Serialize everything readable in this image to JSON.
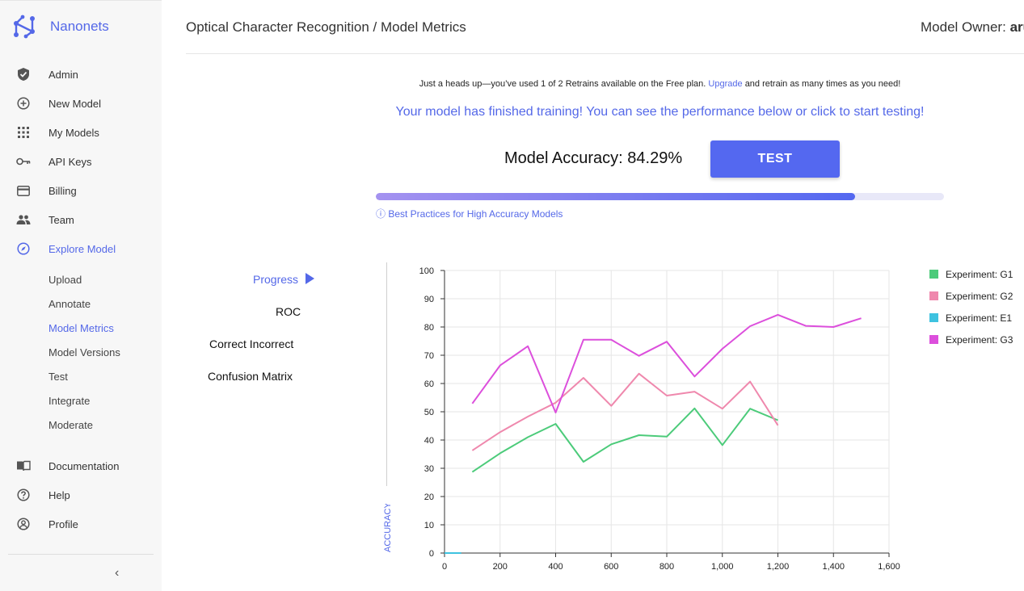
{
  "sidebar": {
    "brand": "Nanonets",
    "nav": [
      {
        "label": "Admin",
        "icon": "shield-icon"
      },
      {
        "label": "New Model",
        "icon": "plus-circle-icon"
      },
      {
        "label": "My Models",
        "icon": "grid-icon"
      },
      {
        "label": "API Keys",
        "icon": "key-icon"
      },
      {
        "label": "Billing",
        "icon": "credit-card-icon"
      },
      {
        "label": "Team",
        "icon": "people-icon"
      },
      {
        "label": "Explore Model",
        "icon": "compass-icon"
      }
    ],
    "sub_items": [
      "Upload",
      "Annotate",
      "Model Metrics",
      "Model Versions",
      "Test",
      "Integrate",
      "Moderate"
    ],
    "active_sub": "Model Metrics",
    "bottom": [
      {
        "label": "Documentation",
        "icon": "book-icon"
      },
      {
        "label": "Help",
        "icon": "help-icon"
      },
      {
        "label": "Profile",
        "icon": "profile-icon"
      }
    ],
    "collapse_glyph": "‹"
  },
  "header": {
    "breadcrumb": "Optical Character Recognition / Model Metrics",
    "owner_label": "Model Owner:",
    "owner_name": "aru"
  },
  "notice": {
    "text_before": "Just a heads up—you’ve used 1 of 2 Retrains available on the Free plan.",
    "link": "Upgrade",
    "text_after": "and retrain as many times as you need!"
  },
  "training_message": "Your model has finished training! You can see the performance below or click to start testing!",
  "accuracy_text": "Model Accuracy: 84.29%",
  "accuracy_value": 84.29,
  "test_button": "TEST",
  "best_practices": "ⓘ Best Practices for High Accuracy Models",
  "metric_tabs": [
    "Progress",
    "ROC",
    "Correct Incorrect",
    "Confusion Matrix"
  ],
  "active_tab": "Progress",
  "colors": {
    "accent": "#5468e8",
    "G1": "#4ccb7a",
    "G2": "#ef88ad",
    "E1": "#3ec2e0",
    "G3": "#dc4fdc"
  },
  "chart_data": {
    "type": "line",
    "ylabel": "ACCURACY",
    "xlabel": "",
    "xlim": [
      0,
      1600
    ],
    "ylim": [
      0,
      100
    ],
    "x_ticks": [
      0,
      200,
      400,
      600,
      800,
      1000,
      1200,
      1400,
      1600
    ],
    "x_tick_labels": [
      "0",
      "200",
      "400",
      "600",
      "800",
      "1,000",
      "1,200",
      "1,400",
      "1,600"
    ],
    "y_ticks": [
      0,
      10,
      20,
      30,
      40,
      50,
      60,
      70,
      80,
      90,
      100
    ],
    "grid": true,
    "legend_position": "right",
    "series": [
      {
        "name": "Experiment: G1",
        "color": "#4ccb7a",
        "x": [
          100,
          200,
          300,
          400,
          500,
          600,
          700,
          800,
          900,
          1000,
          1100,
          1200
        ],
        "y": [
          28.7,
          35.3,
          41,
          45.7,
          32.3,
          38.5,
          41.7,
          41.2,
          51.2,
          38.2,
          51.1,
          47
        ]
      },
      {
        "name": "Experiment: G2",
        "color": "#ef88ad",
        "x": [
          100,
          200,
          300,
          400,
          500,
          600,
          700,
          800,
          900,
          1000,
          1100,
          1200
        ],
        "y": [
          36.3,
          42.8,
          48.3,
          53.2,
          62,
          52.1,
          63.5,
          55.7,
          57.1,
          51.1,
          60.7,
          45.2
        ]
      },
      {
        "name": "Experiment: E1",
        "color": "#3ec2e0",
        "x": [
          0,
          60
        ],
        "y": [
          0,
          0
        ]
      },
      {
        "name": "Experiment: G3",
        "color": "#dc4fdc",
        "x": [
          100,
          200,
          300,
          400,
          500,
          600,
          700,
          800,
          900,
          1000,
          1100,
          1200,
          1300,
          1400,
          1500
        ],
        "y": [
          52.9,
          66.4,
          73.2,
          49.7,
          75.5,
          75.5,
          69.8,
          74.8,
          62.5,
          72.3,
          80.3,
          84.3,
          80.4,
          80,
          83.1
        ]
      }
    ]
  }
}
